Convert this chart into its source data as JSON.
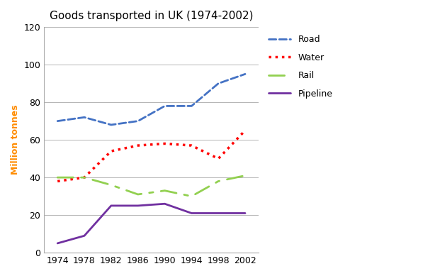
{
  "title": "Goods transported in UK (1974-2002)",
  "ylabel": "Million tonnes",
  "years": [
    1974,
    1978,
    1982,
    1986,
    1990,
    1994,
    1998,
    2002
  ],
  "road": [
    70,
    72,
    68,
    70,
    78,
    78,
    90,
    95
  ],
  "water": [
    38,
    40,
    54,
    57,
    58,
    57,
    50,
    65
  ],
  "rail": [
    40,
    40,
    36,
    31,
    33,
    30,
    38,
    41
  ],
  "pipeline": [
    5,
    9,
    25,
    25,
    26,
    21,
    21,
    21
  ],
  "road_color": "#4472C4",
  "water_color": "#FF0000",
  "rail_color": "#92D050",
  "pipeline_color": "#7030A0",
  "ylim": [
    0,
    120
  ],
  "xlim_min": 1972,
  "xlim_max": 2004,
  "xticks": [
    1974,
    1978,
    1982,
    1986,
    1990,
    1994,
    1998,
    2002
  ],
  "yticks": [
    0,
    20,
    40,
    60,
    80,
    100,
    120
  ],
  "title_fontsize": 11,
  "axis_label_fontsize": 9,
  "tick_fontsize": 9,
  "legend_fontsize": 9,
  "ylabel_color": "#FF8C00"
}
